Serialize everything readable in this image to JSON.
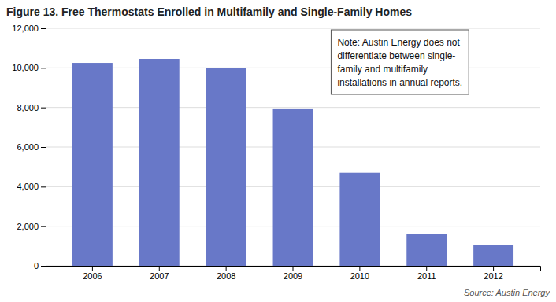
{
  "chart_data": {
    "type": "bar",
    "title": "Figure 13.  Free Thermostats Enrolled in Multifamily and Single-Family Homes",
    "categories": [
      "2006",
      "2007",
      "2008",
      "2009",
      "2010",
      "2011",
      "2012"
    ],
    "values": [
      10250,
      10450,
      10000,
      7950,
      4700,
      1600,
      1050
    ],
    "color": "#6878c8",
    "ylim": [
      0,
      12000
    ],
    "yticks": [
      0,
      {
        "value": 2000,
        "label": "2,000"
      },
      {
        "value": 4000,
        "label": "4,000"
      },
      {
        "value": 6000,
        "label": "6,000"
      },
      {
        "value": 8000,
        "label": "8,000"
      },
      {
        "value": 10000,
        "label": "10,000"
      },
      {
        "value": 12000,
        "label": "12,000"
      }
    ],
    "grid": true,
    "annotations": [
      "Note: Austin Energy does not\ndifferentiate between single-\nfamily and multifamily\ninstallations in annual reports.",
      "Source: Austin Energy"
    ]
  }
}
